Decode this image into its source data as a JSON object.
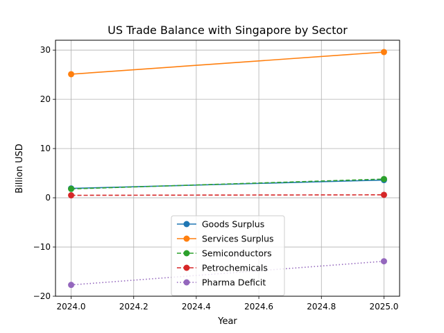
{
  "chart_data": {
    "type": "line",
    "title": "US Trade Balance with Singapore by Sector",
    "xlabel": "Year",
    "ylabel": "Billion USD",
    "xlim": [
      2023.95,
      2025.05
    ],
    "ylim": [
      -20,
      32
    ],
    "xticks": [
      2024.0,
      2024.2,
      2024.4,
      2024.6,
      2024.8,
      2025.0
    ],
    "xtick_labels": [
      "2024.0",
      "2024.2",
      "2024.4",
      "2024.6",
      "2024.8",
      "2025.0"
    ],
    "yticks": [
      -20,
      -10,
      0,
      10,
      20,
      30
    ],
    "ytick_labels": [
      "−20",
      "−10",
      "0",
      "10",
      "20",
      "30"
    ],
    "grid": true,
    "legend_position": "bottom-center",
    "x": [
      2024.0,
      2025.0
    ],
    "series": [
      {
        "name": "Goods Surplus",
        "values": [
          1.9,
          3.6
        ],
        "color": "#1f77b4",
        "dash": "solid"
      },
      {
        "name": "Services Surplus",
        "values": [
          25.1,
          29.6
        ],
        "color": "#ff7f0e",
        "dash": "solid"
      },
      {
        "name": "Semiconductors",
        "values": [
          1.8,
          3.8
        ],
        "color": "#2ca02c",
        "dash": "dashed"
      },
      {
        "name": "Petrochemicals",
        "values": [
          0.5,
          0.6
        ],
        "color": "#d62728",
        "dash": "dashed"
      },
      {
        "name": "Pharma Deficit",
        "values": [
          -17.7,
          -12.9
        ],
        "color": "#9467bd",
        "dash": "dotted"
      }
    ]
  }
}
